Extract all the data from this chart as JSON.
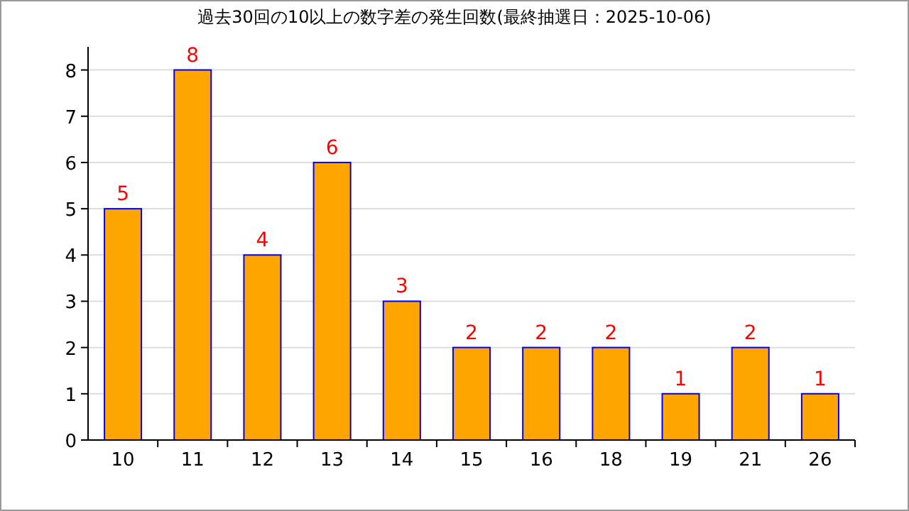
{
  "chart_data": {
    "type": "bar",
    "title": "過去30回の10以上の数字差の発生回数(最終抽選日：2025-10-06)",
    "categories": [
      "10",
      "11",
      "12",
      "13",
      "14",
      "15",
      "16",
      "18",
      "19",
      "21",
      "26"
    ],
    "values": [
      5,
      8,
      4,
      6,
      3,
      2,
      2,
      2,
      1,
      2,
      1
    ],
    "color": "#ffa500",
    "ylim": [
      0,
      8.5
    ],
    "yticks": [
      0,
      1,
      2,
      3,
      4,
      5,
      6,
      7,
      8
    ],
    "grid": "y",
    "data_labels": true
  }
}
